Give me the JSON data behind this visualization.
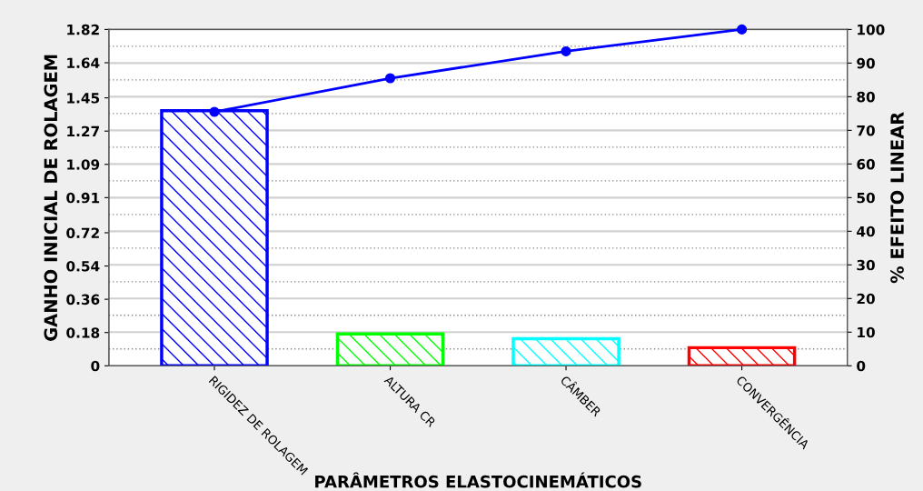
{
  "chart_data": {
    "type": "bar",
    "xlabel": "PARÂMETROS ELASTOCINEMÁTICOS",
    "ylabel": "GANHO INICIAL DE ROLAGEM",
    "y2label": "% EFEITO LINEAR",
    "categories": [
      "RIGIDEZ DE ROLAGEM",
      "ALTURA CR",
      "CÂMBER",
      "CONVERGÊNCIA"
    ],
    "series": [
      {
        "colors": [
          "#0000ff",
          "#00ff00",
          "#00ffff",
          "#ff0000"
        ],
        "values": [
          1.38,
          0.172,
          0.147,
          0.098
        ]
      },
      {
        "type": "line",
        "axis": "y2",
        "color": "#0000ff",
        "marker": "circle",
        "values": [
          75.5,
          85.5,
          93.5,
          100
        ]
      }
    ],
    "ylim": [
      0,
      1.82
    ],
    "yticks": [
      0,
      0.18,
      0.36,
      0.54,
      0.72,
      0.91,
      1.09,
      1.27,
      1.45,
      1.64,
      1.82
    ],
    "y2lim": [
      0,
      100
    ],
    "y2ticks": [
      0,
      {
        "value": 5,
        "label": null
      },
      10,
      {
        "value": 15,
        "label": null
      },
      20,
      {
        "value": 25,
        "label": null
      },
      30,
      {
        "value": 35,
        "label": null
      },
      40,
      {
        "value": 45,
        "label": null
      },
      50,
      {
        "value": 55,
        "label": null
      },
      60,
      {
        "value": 65,
        "label": null
      },
      70,
      {
        "value": 75,
        "label": null
      },
      80,
      {
        "value": 85,
        "label": null
      },
      90,
      {
        "value": 95,
        "label": null
      },
      100
    ],
    "grid": true
  }
}
